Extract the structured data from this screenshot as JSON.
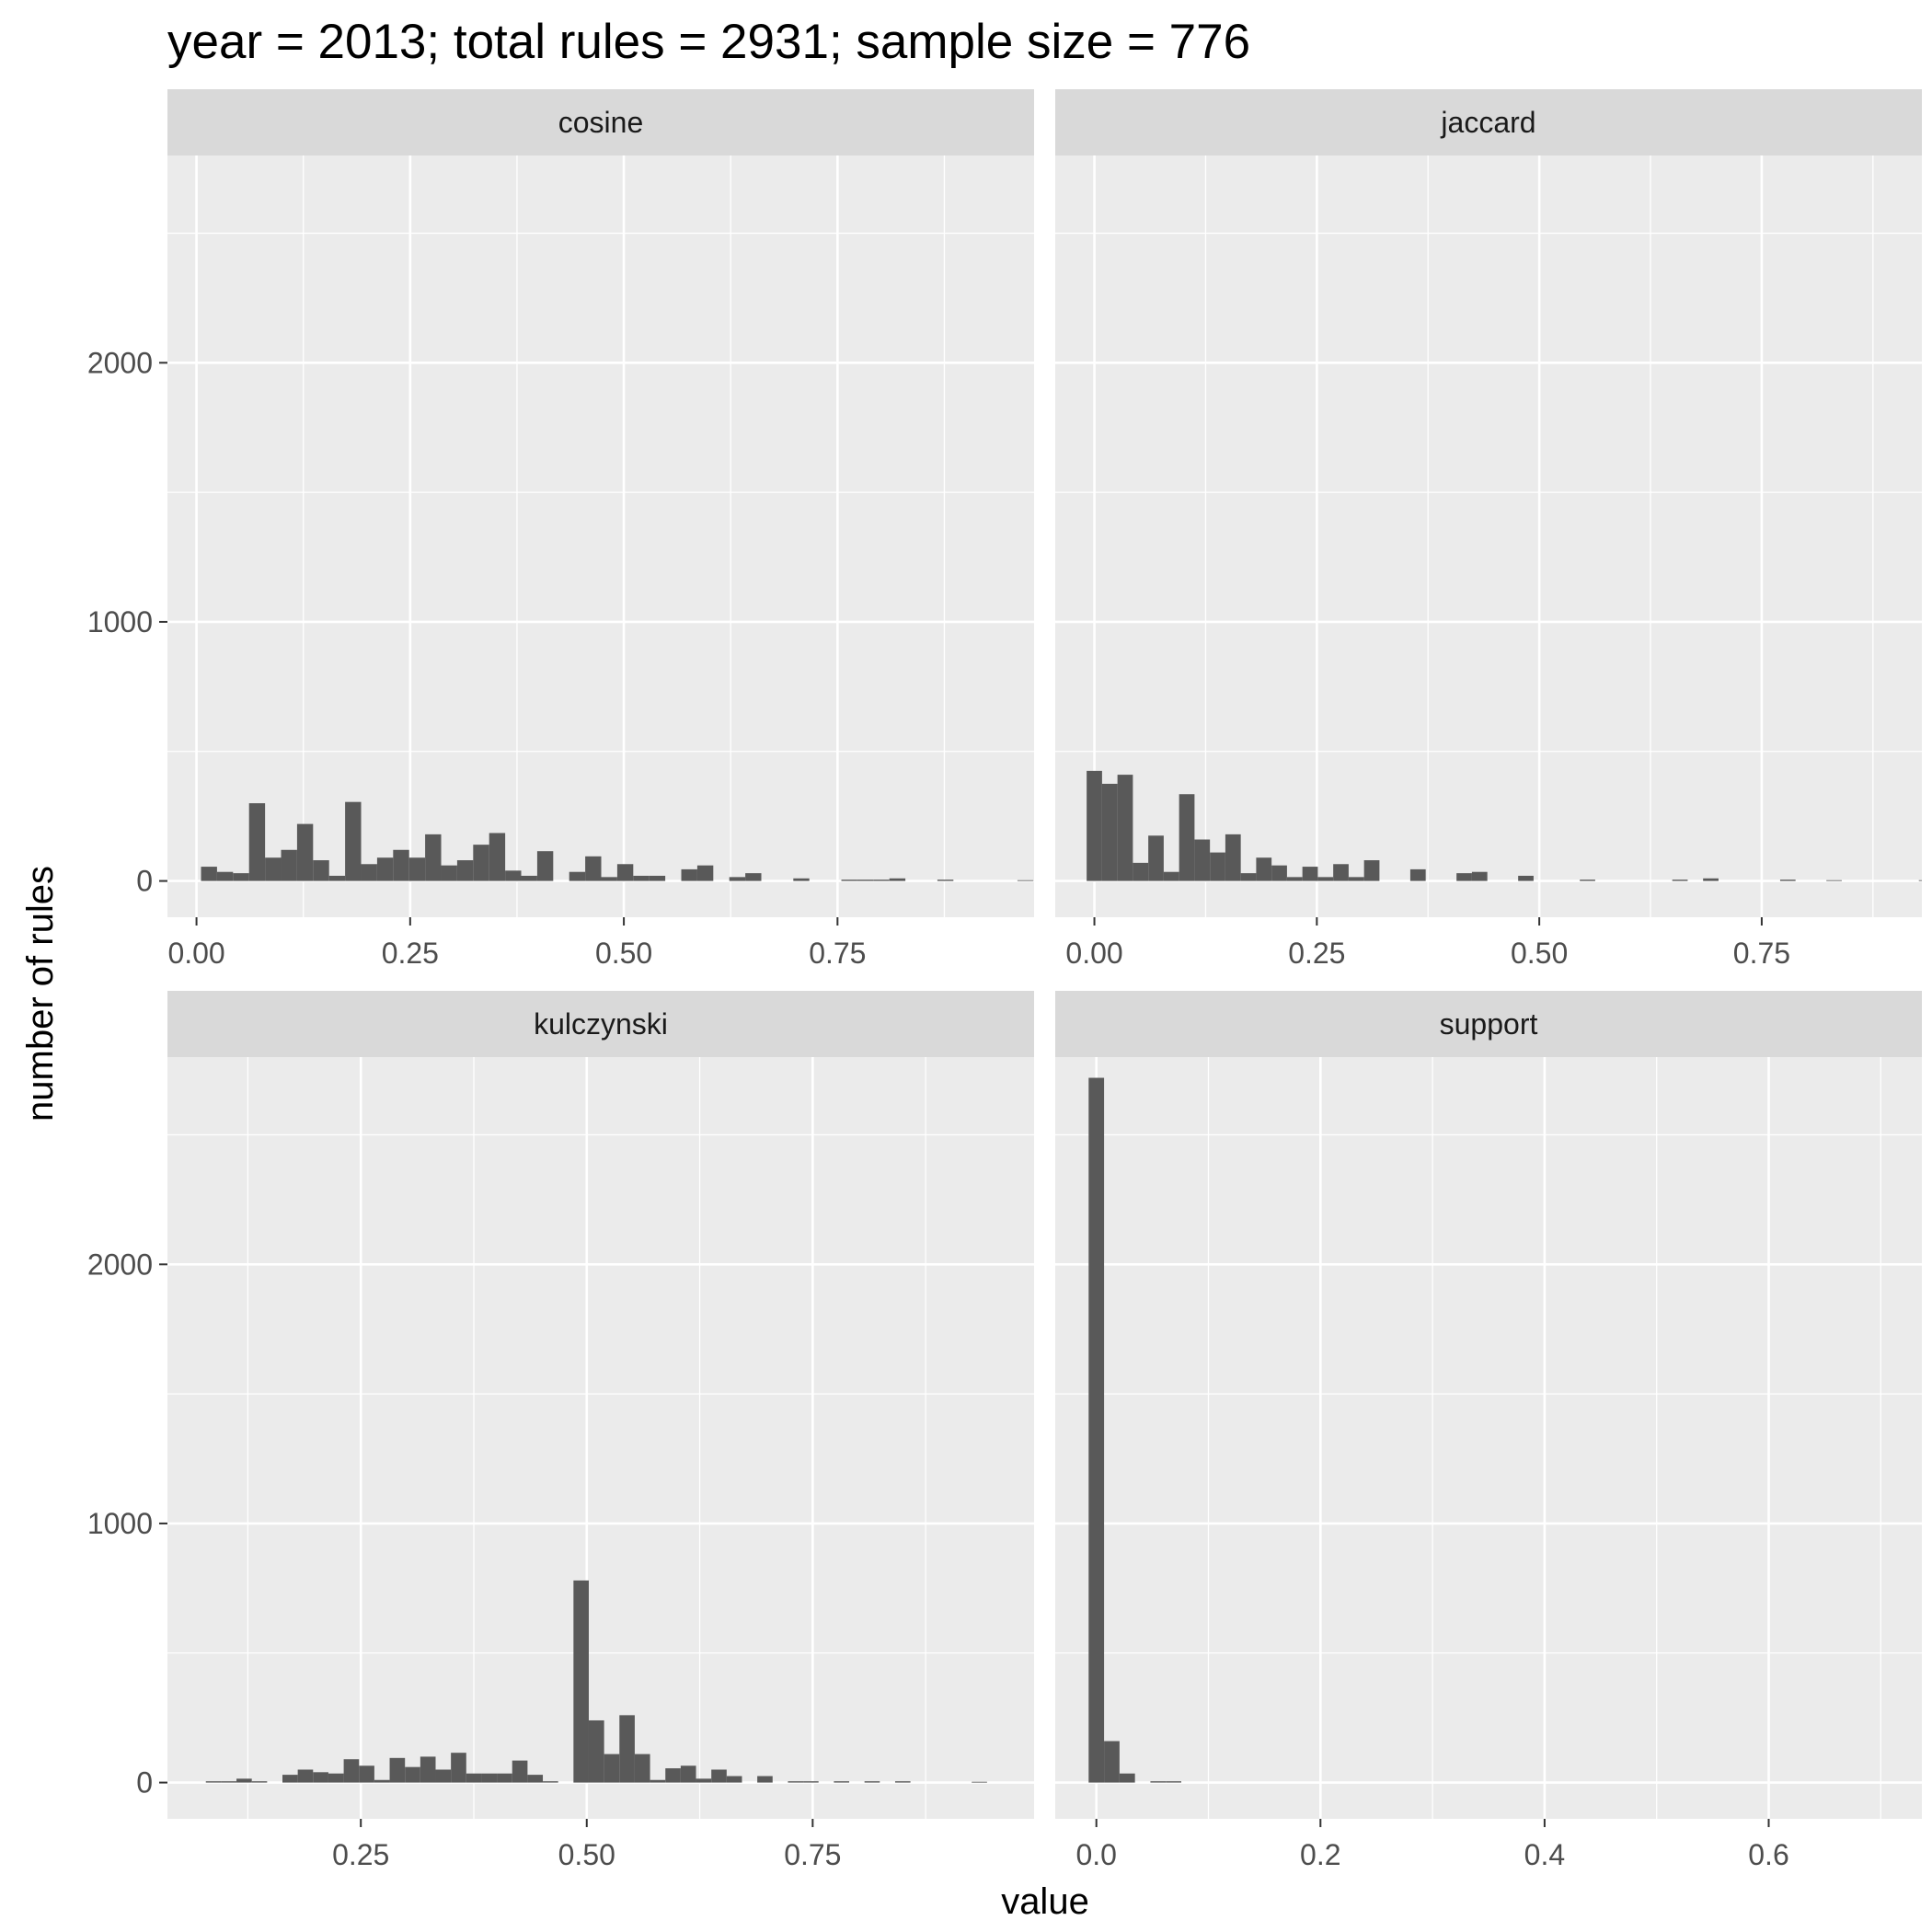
{
  "chart_data": {
    "type": "bar",
    "title": "year = 2013; total rules = 2931; sample size = 776",
    "xlabel": "value",
    "ylabel": "number of rules",
    "grid": true,
    "y_ticks": [
      "0",
      "1000",
      "2000"
    ],
    "y_tick_values": [
      0,
      1000,
      2000
    ],
    "ylim": [
      -140,
      2800
    ],
    "bar_color": "#595959",
    "panel_bg": "#ebebeb",
    "strip_bg": "#d9d9d9",
    "grid_color": "#ffffff",
    "panels": [
      {
        "name": "cosine",
        "xlim": [
          -0.034,
          0.98
        ],
        "x_tick_values": [
          0,
          0.25,
          0.5,
          0.75
        ],
        "x_ticks": [
          "0.00",
          "0.25",
          "0.50",
          "0.75"
        ],
        "bin_width": 0.01873,
        "bin_start": 0.0053,
        "values": [
          55,
          35,
          30,
          300,
          90,
          120,
          220,
          80,
          20,
          305,
          65,
          90,
          120,
          90,
          180,
          60,
          80,
          140,
          185,
          40,
          20,
          115,
          0,
          35,
          95,
          15,
          65,
          20,
          20,
          0,
          45,
          60,
          0,
          15,
          30,
          0,
          0,
          10,
          0,
          0,
          5,
          5,
          5,
          10,
          0,
          0,
          5,
          0,
          0,
          0,
          0,
          3,
          0,
          0
        ]
      },
      {
        "name": "jaccard",
        "xlim": [
          -0.044,
          0.93
        ],
        "x_tick_values": [
          0,
          0.25,
          0.5,
          0.75
        ],
        "x_ticks": [
          "0.00",
          "0.25",
          "0.50",
          "0.75"
        ],
        "bin_width": 0.01732,
        "bin_start": -0.0087,
        "values": [
          425,
          375,
          410,
          70,
          175,
          35,
          335,
          160,
          110,
          180,
          30,
          90,
          60,
          15,
          55,
          15,
          65,
          15,
          80,
          0,
          0,
          45,
          0,
          0,
          30,
          35,
          0,
          0,
          20,
          0,
          0,
          0,
          5,
          0,
          0,
          0,
          0,
          0,
          5,
          0,
          10,
          0,
          0,
          0,
          0,
          5,
          0,
          0,
          3,
          0,
          0,
          0,
          0,
          0,
          3
        ]
      },
      {
        "name": "kulczynski",
        "xlim": [
          0.036,
          0.995
        ],
        "x_tick_values": [
          0.25,
          0.5,
          0.75
        ],
        "x_ticks": [
          "0.25",
          "0.50",
          "0.75"
        ],
        "bin_width": 0.01695,
        "bin_start": 0.0785,
        "values": [
          5,
          5,
          15,
          5,
          0,
          30,
          50,
          40,
          35,
          90,
          65,
          10,
          95,
          60,
          100,
          50,
          115,
          35,
          35,
          35,
          85,
          30,
          5,
          0,
          780,
          240,
          110,
          260,
          110,
          10,
          55,
          65,
          15,
          50,
          25,
          0,
          25,
          0,
          5,
          5,
          0,
          5,
          0,
          5,
          0,
          5,
          0,
          0,
          0,
          0,
          3,
          0
        ]
      },
      {
        "name": "support",
        "xlim": [
          -0.0367,
          0.7367
        ],
        "x_tick_values": [
          0,
          0.2,
          0.4,
          0.6
        ],
        "x_ticks": [
          "0.0",
          "0.2",
          "0.4",
          "0.6"
        ],
        "bin_width": 0.01378,
        "bin_start": -0.0069,
        "values": [
          2720,
          160,
          35,
          0,
          5,
          5
        ]
      }
    ]
  }
}
